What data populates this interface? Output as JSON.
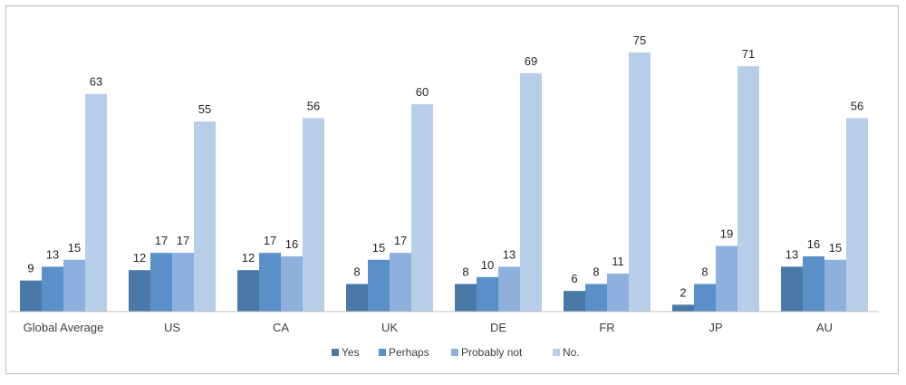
{
  "chart_data": {
    "type": "bar",
    "categories": [
      "Global Average",
      "US",
      "CA",
      "UK",
      "DE",
      "FR",
      "JP",
      "AU"
    ],
    "series": [
      {
        "name": "Yes",
        "color": "#4a79a7",
        "values": [
          9,
          12,
          12,
          8,
          8,
          6,
          2,
          13
        ]
      },
      {
        "name": "Perhaps",
        "color": "#5b8fc7",
        "values": [
          13,
          17,
          17,
          15,
          10,
          8,
          8,
          16
        ]
      },
      {
        "name": "Probably not",
        "color": "#8db0dd",
        "values": [
          15,
          17,
          16,
          17,
          13,
          11,
          19,
          15
        ]
      },
      {
        "name": "No.",
        "color": "#b8cde7",
        "values": [
          63,
          55,
          56,
          60,
          69,
          75,
          71,
          56
        ]
      }
    ],
    "ylim": [
      0,
      80
    ],
    "grid": false,
    "legend_position": "bottom-center",
    "data_labels": true
  }
}
